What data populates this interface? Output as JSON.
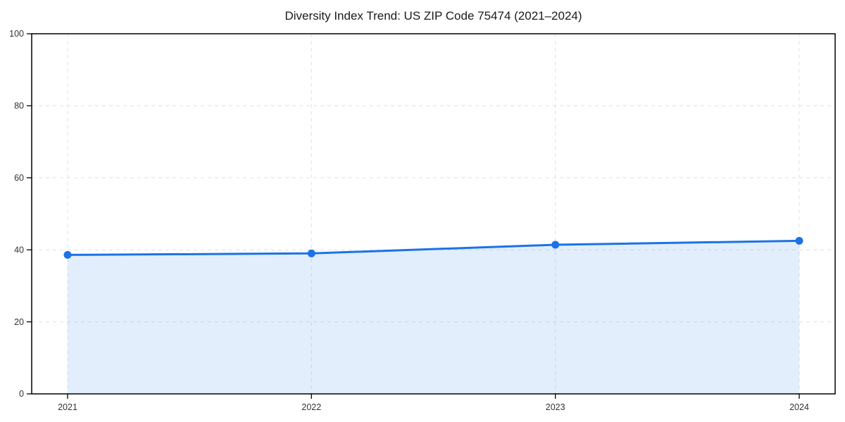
{
  "chart_data": {
    "type": "line",
    "title": "Diversity Index Trend: US ZIP Code 75474 (2021–2024)",
    "x_categories": [
      "2021",
      "2022",
      "2023",
      "2024"
    ],
    "series": [
      {
        "name": "Diversity Index",
        "values": [
          38.6,
          39.0,
          41.4,
          42.5
        ]
      }
    ],
    "ylim": [
      0,
      100
    ],
    "yticks": [
      0,
      20,
      40,
      60,
      80,
      100
    ],
    "xlabel": "",
    "ylabel": "",
    "grid": true,
    "grid_style": "dashed",
    "legend": "none",
    "area_fill": true,
    "marker": "circle"
  },
  "colors": {
    "line": "#1a73e8",
    "marker": "#1a73e8",
    "area_fill": "rgba(26,115,232,0.12)",
    "gridline": "#e0e0e0",
    "axis": "#000000",
    "tick_label": "#333333",
    "title": "#1a1a1a",
    "background": "#ffffff"
  }
}
